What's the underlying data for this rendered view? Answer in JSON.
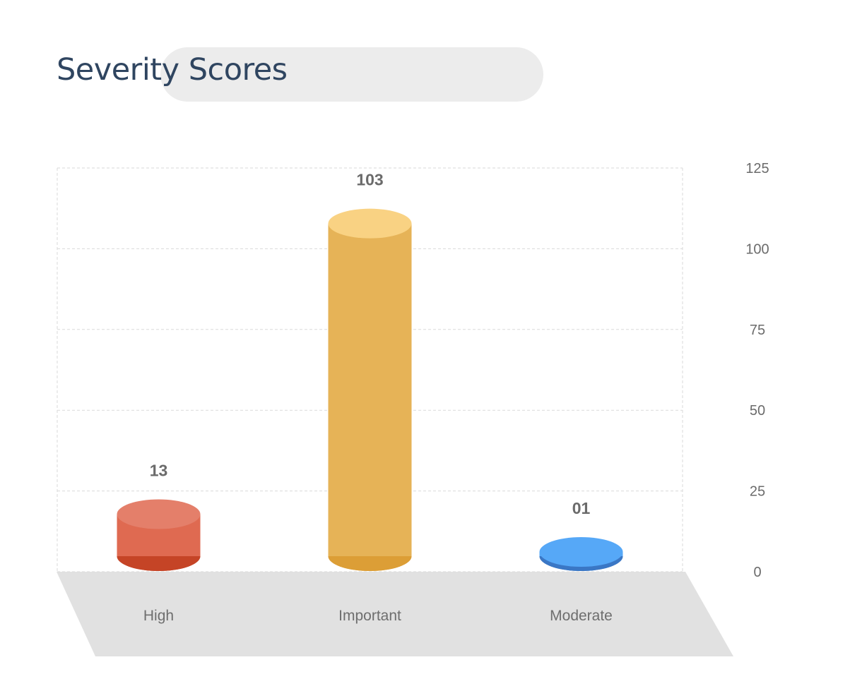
{
  "title": "Severity Scores",
  "chart_data": {
    "type": "bar",
    "title": "Severity Scores",
    "categories": [
      "High",
      "Important",
      "Moderate"
    ],
    "values": [
      13,
      103,
      1
    ],
    "value_labels": [
      "13",
      "103",
      "01"
    ],
    "ylim": [
      0,
      125
    ],
    "y_ticks": [
      0,
      25,
      50,
      75,
      100,
      125
    ],
    "y_axis_side": "right",
    "grid": true,
    "bar_style": "3d-cylinder",
    "colors": [
      {
        "top": "#e47f6a",
        "side": "#df6a51",
        "bottom": "#c54426"
      },
      {
        "top": "#f9d283",
        "side": "#e6b357",
        "bottom": "#dc9e36"
      },
      {
        "top": "#56a8f7",
        "side": "#56a8f7",
        "bottom": "#3a77c5"
      }
    ],
    "floor_color": "#e1e1e1",
    "grid_color": "#dadada"
  }
}
